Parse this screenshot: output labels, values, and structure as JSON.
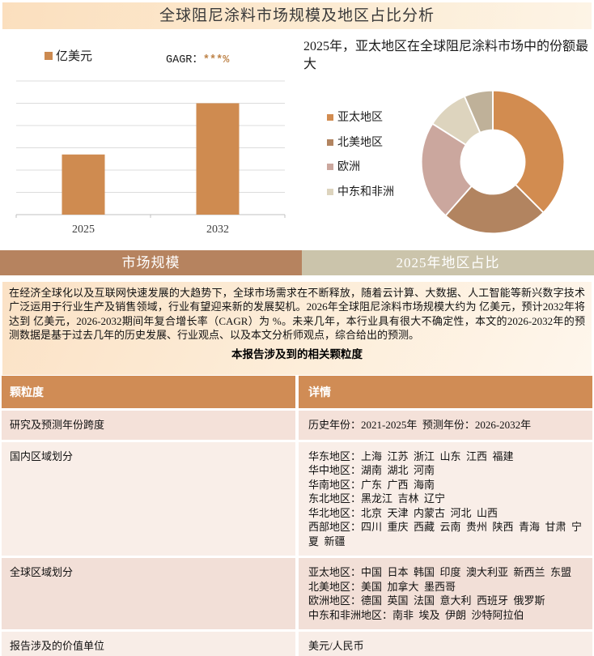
{
  "page": {
    "title": "全球阻尼涂料市场规模及地区占比分析"
  },
  "bar_panel": {
    "legend_label": "亿美元",
    "cagr_label": "GAGR：",
    "cagr_value": "***%"
  },
  "donut_panel": {
    "title": "2025年，亚太地区在全球阻尼涂料市场中的份额最大"
  },
  "tabs": [
    {
      "label": "市场规模",
      "active": true
    },
    {
      "label": "2025年地区占比",
      "active": false
    }
  ],
  "summary": {
    "text": "在经济全球化以及互联网快速发展的大趋势下，全球市场需求在不断释放，随着云计算、大数据、人工智能等新兴数字技术广泛运用于行业生产及销售领域，行业有望迎来新的发展契机。2026年全球阻尼涂料市场规模大约为 亿美元，预计2032年将达到 亿美元，2026-2032期间年复合增长率（CAGR）为 %。未来几年，本行业具有很大不确定性，本文的2026-2032年的预测数据是基于过去几年的历史发展、行业观点、以及本文分析师观点，综合给出的预测。",
    "table_title": "本报告涉及到的相关颗粒度"
  },
  "table": {
    "headers": [
      "颗粒度",
      "详情"
    ],
    "rows": [
      {
        "label": "研究及预测年份跨度",
        "detail": "历史年份：2021-2025年  预测年份：2026-2032年"
      },
      {
        "label": "国内区域划分",
        "detail": "华东地区：上海  江苏  浙江  山东  江西  福建\n华中地区：湖南  湖北  河南\n华南地区：广东  广西  海南\n东北地区：黑龙江  吉林  辽宁\n华北地区：北京  天津  内蒙古  河北  山西\n西部地区：四川  重庆  西藏  云南  贵州  陕西  青海  甘肃  宁夏  新疆"
      },
      {
        "label": "全球区域划分",
        "detail": "亚太地区：中国  日本  韩国  印度  澳大利亚  新西兰  东盟\n北美地区：美国  加拿大  墨西哥\n欧洲地区：德国  英国  法国  意大利  西班牙  俄罗斯\n中东和非洲地区：南非  埃及  伊朗  沙特阿拉伯"
      },
      {
        "label": "报告涉及的价值单位",
        "detail": "美元/人民币"
      }
    ]
  },
  "chart_data": [
    {
      "type": "bar",
      "title": "",
      "categories": [
        "2025",
        "2032"
      ],
      "values": [
        2.7,
        5
      ],
      "ylabel": "",
      "xlabel": "",
      "ylim": [
        0,
        6
      ],
      "grid": true,
      "y_tick_labels_visible": false,
      "legend": [
        "亿美元"
      ],
      "annotation": "GAGR：***%",
      "bar_color": "#CF8B50"
    },
    {
      "type": "pie",
      "donut": true,
      "title": "2025年，亚太地区在全球阻尼涂料市场中的份额最大",
      "legend_position": "left",
      "slices": [
        {
          "label": "亚太地区",
          "value": 37.5,
          "color": "#D28C50"
        },
        {
          "label": "北美地区",
          "value": 24.0,
          "color": "#B28460"
        },
        {
          "label": "欧洲",
          "value": 22.5,
          "color": "#CBA79E"
        },
        {
          "label": "中东和非洲",
          "value": 9.5,
          "color": "#DDD4BE"
        },
        {
          "label": "",
          "value": 6.5,
          "color": "#BFB199"
        }
      ]
    }
  ],
  "colors": {
    "banner_bg": "#FBE2C6",
    "accent_orange": "#CC8A50",
    "cagr_value_color": "#BE8348",
    "gridline": "#DCDCDC",
    "axis": "#C0C0C0",
    "tab_active_bg": "#B6835F",
    "tab_inactive_bg": "#CBC4AB",
    "table_header_bg": "#D08C55",
    "row_bgs": [
      "#F4E1D9",
      "#F9EEE8",
      "#F2DFD7",
      "#F8EDE7"
    ]
  }
}
